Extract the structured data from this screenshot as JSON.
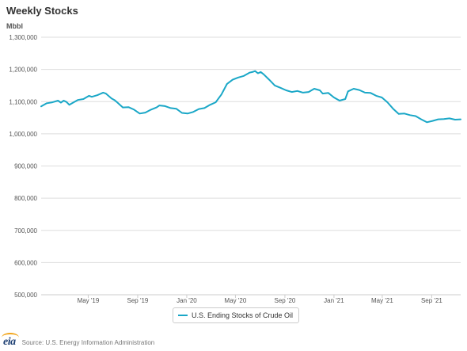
{
  "title": "Weekly Stocks",
  "y_unit": "Mbbl",
  "legend": {
    "label": "U.S. Ending Stocks of Crude Oil"
  },
  "footer": {
    "logo_text": "eia",
    "source": "Source: U.S. Energy Information Administration"
  },
  "colors": {
    "series": "#1aa7c7",
    "grid": "#dddddd"
  },
  "chart_data": {
    "type": "line",
    "title": "Weekly Stocks",
    "ylabel": "Mbbl",
    "xlabel": "",
    "ylim": [
      500000,
      1300000
    ],
    "xlim": [
      "2019-01-04",
      "2021-11-12"
    ],
    "grid": true,
    "legend_position": "bottom",
    "y_ticks": [
      500000,
      600000,
      700000,
      800000,
      900000,
      1000000,
      1100000,
      1200000,
      1300000
    ],
    "y_tick_labels": [
      "500,000",
      "600,000",
      "700,000",
      "800,000",
      "900,000",
      "1,000,000",
      "1,100,000",
      "1,200,000",
      "1,300,000"
    ],
    "x_ticks": [
      "2019-05-01",
      "2019-09-01",
      "2020-01-01",
      "2020-05-01",
      "2020-09-01",
      "2021-01-01",
      "2021-05-01",
      "2021-09-01"
    ],
    "x_tick_labels": [
      "May '19",
      "Sep '19",
      "Jan '20",
      "May '20",
      "Sep '20",
      "Jan '21",
      "May '21",
      "Sep '21"
    ],
    "series": [
      {
        "name": "U.S. Ending Stocks of Crude Oil",
        "x": [
          "2019-01-04",
          "2019-01-18",
          "2019-02-01",
          "2019-02-15",
          "2019-02-22",
          "2019-03-01",
          "2019-03-08",
          "2019-03-15",
          "2019-03-22",
          "2019-04-05",
          "2019-04-19",
          "2019-05-03",
          "2019-05-10",
          "2019-05-24",
          "2019-06-07",
          "2019-06-14",
          "2019-06-28",
          "2019-07-05",
          "2019-07-12",
          "2019-07-26",
          "2019-08-09",
          "2019-08-23",
          "2019-09-06",
          "2019-09-20",
          "2019-10-04",
          "2019-10-18",
          "2019-10-25",
          "2019-11-08",
          "2019-11-22",
          "2019-12-06",
          "2019-12-20",
          "2020-01-03",
          "2020-01-17",
          "2020-01-31",
          "2020-02-14",
          "2020-02-28",
          "2020-03-13",
          "2020-03-27",
          "2020-04-10",
          "2020-04-24",
          "2020-05-08",
          "2020-05-22",
          "2020-06-05",
          "2020-06-12",
          "2020-06-19",
          "2020-06-26",
          "2020-07-03",
          "2020-07-10",
          "2020-07-24",
          "2020-08-07",
          "2020-08-21",
          "2020-09-04",
          "2020-09-18",
          "2020-10-02",
          "2020-10-16",
          "2020-10-30",
          "2020-11-13",
          "2020-11-27",
          "2020-12-04",
          "2020-12-18",
          "2021-01-01",
          "2021-01-15",
          "2021-01-29",
          "2021-02-05",
          "2021-02-19",
          "2021-03-05",
          "2021-03-19",
          "2021-04-02",
          "2021-04-16",
          "2021-04-30",
          "2021-05-14",
          "2021-05-28",
          "2021-06-11",
          "2021-06-25",
          "2021-07-09",
          "2021-07-23",
          "2021-08-06",
          "2021-08-20",
          "2021-09-03",
          "2021-09-17",
          "2021-10-01",
          "2021-10-15",
          "2021-10-29",
          "2021-11-12"
        ],
        "values": [
          1085000,
          1095000,
          1098000,
          1103000,
          1097000,
          1103000,
          1099000,
          1090000,
          1095000,
          1105000,
          1108000,
          1118000,
          1115000,
          1120000,
          1128000,
          1125000,
          1110000,
          1105000,
          1098000,
          1082000,
          1083000,
          1075000,
          1063000,
          1066000,
          1075000,
          1082000,
          1088000,
          1086000,
          1080000,
          1078000,
          1065000,
          1063000,
          1068000,
          1077000,
          1080000,
          1090000,
          1098000,
          1122000,
          1155000,
          1168000,
          1175000,
          1180000,
          1190000,
          1192000,
          1195000,
          1188000,
          1192000,
          1185000,
          1168000,
          1150000,
          1143000,
          1135000,
          1130000,
          1133000,
          1128000,
          1130000,
          1140000,
          1135000,
          1125000,
          1127000,
          1113000,
          1103000,
          1108000,
          1132000,
          1140000,
          1136000,
          1128000,
          1127000,
          1118000,
          1113000,
          1098000,
          1078000,
          1062000,
          1063000,
          1058000,
          1055000,
          1045000,
          1036000,
          1040000,
          1045000,
          1046000,
          1048000,
          1044000,
          1045000
        ]
      }
    ]
  }
}
